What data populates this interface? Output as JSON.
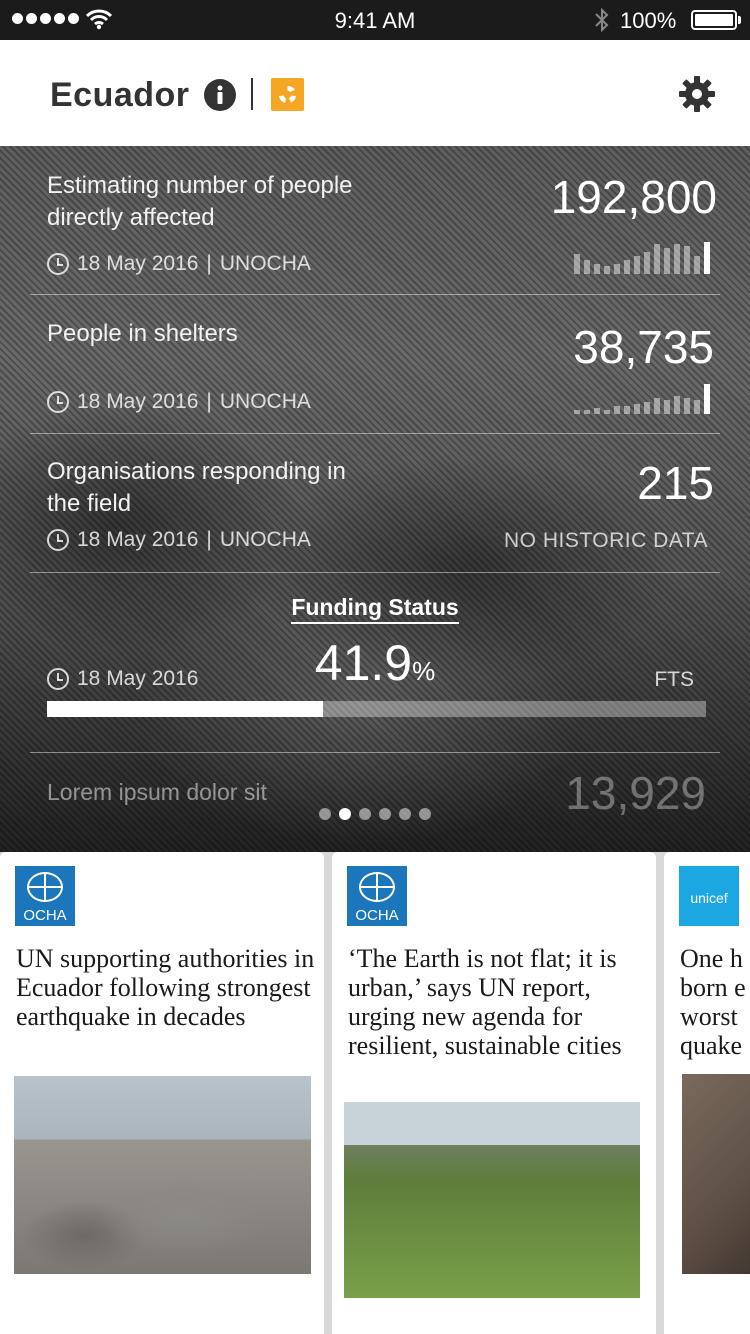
{
  "status_bar": {
    "time": "9:41 AM",
    "battery": "100%"
  },
  "header": {
    "title": "Ecuador"
  },
  "stats": [
    {
      "label": "Estimating number of people directly affected",
      "value": "192,800",
      "date": "18 May 2016",
      "source": "UNOCHA"
    },
    {
      "label": "People in shelters",
      "value": "38,735",
      "date": "18 May 2016",
      "source": "UNOCHA"
    },
    {
      "label": "Organisations responding in the field",
      "value": "215",
      "date": "18 May 2016",
      "source": "UNOCHA",
      "note": "NO HISTORIC DATA"
    }
  ],
  "funding": {
    "title": "Funding Status",
    "percent": "41.9",
    "percent_sign": "%",
    "percent_value": 0.419,
    "date": "18 May 2016",
    "source": "FTS"
  },
  "next_stat": {
    "label": "Lorem ipsum dolor sit",
    "value": "13,929"
  },
  "pager": {
    "count": 6,
    "active": 1
  },
  "news": [
    {
      "org": "OCHA",
      "headline": "UN supporting authorities in Ecuador following strongest earthquake in decades"
    },
    {
      "org": "OCHA",
      "headline": "‘The Earth is not flat; it is urban,’ says UN report, urging new agenda for resilient, sustainable cities"
    },
    {
      "org": "unicef",
      "headline": "One h born e worst quake"
    }
  ],
  "colors": {
    "accent_orange": "#f5a623",
    "ocha_blue": "#1b76bc",
    "unicef_blue": "#1ca7e3"
  }
}
